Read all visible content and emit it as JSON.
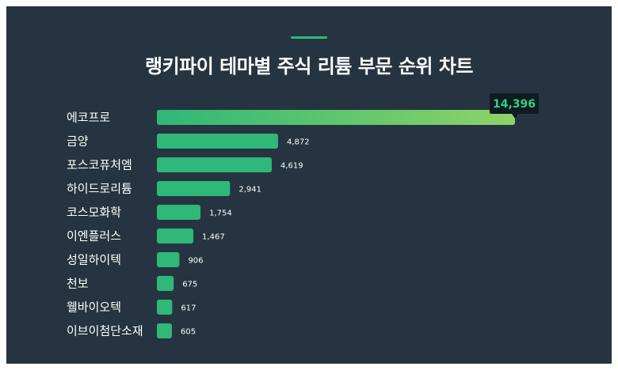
{
  "chart_data": {
    "type": "bar",
    "orientation": "horizontal",
    "title": "랭키파이 테마별 주식 리튬 부문 순위 차트",
    "categories": [
      "에코프로",
      "금양",
      "포스코퓨처엠",
      "하이드로리튬",
      "코스모화학",
      "이엔플러스",
      "성일하이텍",
      "천보",
      "웰바이오텍",
      "이브이첨단소재"
    ],
    "values": [
      14396,
      4872,
      4619,
      2941,
      1754,
      1467,
      906,
      675,
      617,
      605
    ],
    "value_labels": [
      "14,396",
      "4,872",
      "4,619",
      "2,941",
      "1,754",
      "1,467",
      "906",
      "675",
      "617",
      "605"
    ],
    "xlim": [
      0,
      14396
    ],
    "grid": false,
    "legend": "none",
    "colors": {
      "background": "#253440",
      "bar": "#2fb877",
      "top_bar_gradient_end": "#8ed366",
      "callout_bg": "#0f1a22",
      "callout_text": "#2fd17f",
      "accent": "#2fb877"
    }
  }
}
